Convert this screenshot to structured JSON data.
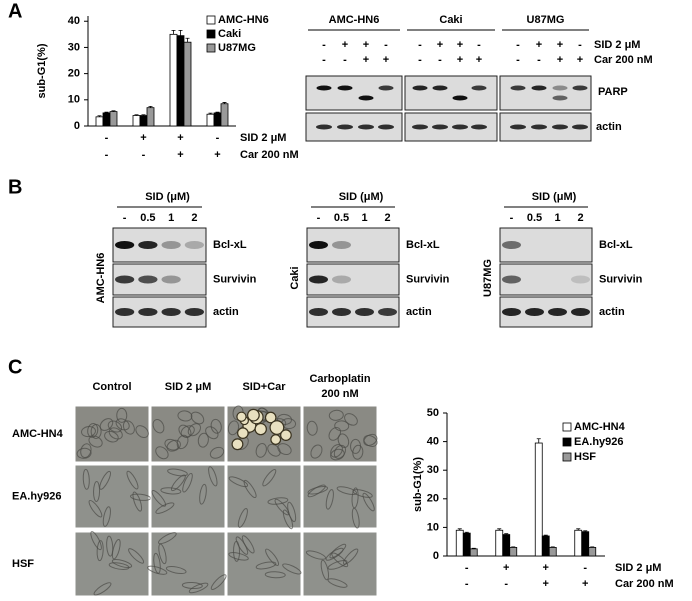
{
  "panel_labels": [
    "A",
    "B",
    "C"
  ],
  "chart_data": [
    {
      "type": "bar",
      "ylabel": "sub-G1(%)",
      "ylim": [
        0,
        42
      ],
      "yticks": [
        0,
        10,
        20,
        30,
        40
      ],
      "categories": [
        null,
        null,
        null,
        null
      ],
      "series": [
        {
          "name": "AMC-HN6",
          "color": "#ffffff",
          "values": [
            3.5,
            4,
            35,
            4.5
          ],
          "errors": [
            0.4,
            0.3,
            1.5,
            0.4
          ]
        },
        {
          "name": "Caki",
          "color": "#000000",
          "values": [
            5,
            4,
            34.5,
            5
          ],
          "errors": [
            0.3,
            0.3,
            2,
            0.3
          ]
        },
        {
          "name": "U87MG",
          "color": "#999999",
          "values": [
            5.5,
            7,
            32,
            8.5
          ],
          "errors": [
            0.3,
            0.5,
            1.5,
            0.5
          ]
        }
      ],
      "treatments": [
        {
          "name": "SID 2 μM",
          "marks": [
            "-",
            "+",
            "+",
            "-"
          ]
        },
        {
          "name": "Car 200 nM",
          "marks": [
            "-",
            "-",
            "+",
            "+"
          ]
        }
      ],
      "legend": "upper right"
    },
    {
      "type": "bar",
      "ylabel": "sub-G1(%)",
      "ylim": [
        0,
        50
      ],
      "yticks": [
        0,
        10,
        20,
        30,
        40,
        50
      ],
      "categories": [
        null,
        null,
        null,
        null
      ],
      "series": [
        {
          "name": "AMC-HN4",
          "color": "#ffffff",
          "values": [
            9,
            9,
            39.5,
            9
          ],
          "errors": [
            0.5,
            0.5,
            1.5,
            0.5
          ]
        },
        {
          "name": "EA.hy926",
          "color": "#000000",
          "values": [
            8,
            7.5,
            7,
            8.5
          ],
          "errors": [
            0.3,
            0.3,
            0.3,
            0.3
          ]
        },
        {
          "name": "HSF",
          "color": "#999999",
          "values": [
            2.5,
            3,
            3,
            3
          ],
          "errors": [
            0.2,
            0.2,
            0.2,
            0.2
          ]
        }
      ],
      "treatments": [
        {
          "name": "SID 2 μM",
          "marks": [
            "-",
            "+",
            "+",
            "-"
          ]
        },
        {
          "name": "Car 200 nM",
          "marks": [
            "-",
            "-",
            "+",
            "+"
          ]
        }
      ],
      "legend": "upper right"
    }
  ],
  "blots_a": {
    "columns": [
      "AMC-HN6",
      "Caki",
      "U87MG"
    ],
    "treatments": [
      {
        "name": "SID 2 μM",
        "marks": [
          "-",
          "+",
          "+",
          "-"
        ]
      },
      {
        "name": "Car 200 nM",
        "marks": [
          "-",
          "-",
          "+",
          "+"
        ]
      }
    ],
    "bands": [
      "PARP",
      "actin"
    ]
  },
  "blots_b": {
    "header": "SID (μM)",
    "doses": [
      "-",
      "0.5",
      "1",
      "2"
    ],
    "cell_lines": [
      "AMC-HN6",
      "Caki",
      "U87MG"
    ],
    "bands": [
      "Bcl-xL",
      "Survivin",
      "actin"
    ]
  },
  "micrographs": {
    "columns": [
      [
        "Control"
      ],
      [
        "SID 2 μM"
      ],
      [
        "SID+Car"
      ],
      [
        "Carboplatin",
        "200 nM"
      ]
    ],
    "rows": [
      "AMC-HN4",
      "EA.hy926",
      "HSF"
    ]
  }
}
